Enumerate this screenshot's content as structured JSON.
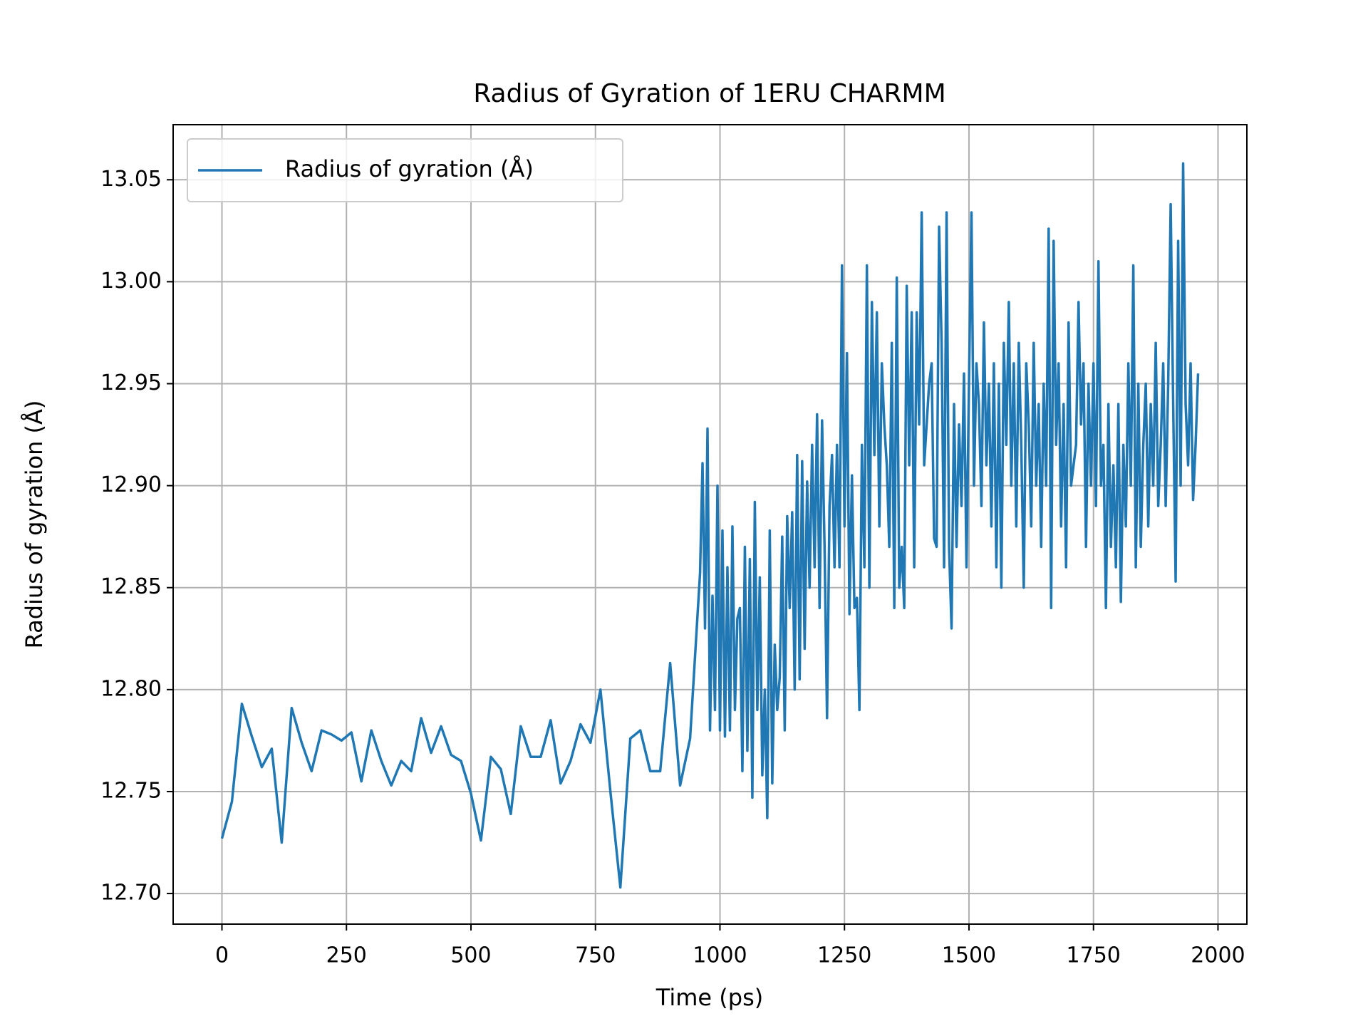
{
  "chart_data": {
    "type": "line",
    "title": "Radius of Gyration of 1ERU CHARMM",
    "xlabel": "Time (ps)",
    "ylabel": "Radius of gyration (Å)",
    "xlim": [
      -98,
      2058
    ],
    "ylim": [
      12.685,
      13.077
    ],
    "xticks": [
      0,
      250,
      500,
      750,
      1000,
      1250,
      1500,
      1750,
      2000
    ],
    "yticks": [
      {
        "value": 12.7,
        "label": "12.70"
      },
      12.75,
      {
        "value": 12.8,
        "label": "12.80"
      },
      12.85,
      {
        "value": 12.9,
        "label": "12.90"
      },
      12.95,
      {
        "value": 13.0,
        "label": "13.00"
      },
      13.05
    ],
    "grid": true,
    "legend_position": "upper left",
    "x": [
      0,
      20,
      40,
      60,
      80,
      100,
      120,
      140,
      160,
      180,
      200,
      220,
      240,
      260,
      280,
      300,
      320,
      340,
      360,
      380,
      400,
      420,
      440,
      460,
      480,
      500,
      520,
      540,
      560,
      580,
      600,
      620,
      640,
      660,
      680,
      700,
      720,
      740,
      760,
      780,
      800,
      820,
      840,
      860,
      880,
      900,
      920,
      940,
      960,
      965,
      970,
      975,
      980,
      985,
      990,
      995,
      1000,
      1005,
      1010,
      1015,
      1020,
      1025,
      1030,
      1035,
      1040,
      1045,
      1050,
      1055,
      1060,
      1065,
      1070,
      1075,
      1080,
      1085,
      1090,
      1095,
      1100,
      1105,
      1110,
      1115,
      1120,
      1125,
      1130,
      1135,
      1140,
      1145,
      1150,
      1155,
      1160,
      1165,
      1170,
      1175,
      1180,
      1185,
      1190,
      1195,
      1200,
      1205,
      1210,
      1215,
      1220,
      1225,
      1230,
      1235,
      1240,
      1245,
      1250,
      1255,
      1260,
      1265,
      1270,
      1275,
      1280,
      1285,
      1290,
      1295,
      1300,
      1305,
      1310,
      1315,
      1320,
      1325,
      1330,
      1335,
      1340,
      1345,
      1350,
      1355,
      1360,
      1365,
      1370,
      1375,
      1380,
      1385,
      1390,
      1395,
      1400,
      1405,
      1410,
      1415,
      1420,
      1425,
      1430,
      1435,
      1440,
      1445,
      1450,
      1455,
      1460,
      1465,
      1470,
      1475,
      1480,
      1485,
      1490,
      1495,
      1500,
      1505,
      1510,
      1515,
      1520,
      1525,
      1530,
      1535,
      1540,
      1545,
      1550,
      1555,
      1560,
      1565,
      1570,
      1575,
      1580,
      1585,
      1590,
      1595,
      1600,
      1605,
      1610,
      1615,
      1620,
      1625,
      1630,
      1635,
      1640,
      1645,
      1650,
      1655,
      1660,
      1665,
      1670,
      1675,
      1680,
      1685,
      1690,
      1695,
      1700,
      1705,
      1710,
      1715,
      1720,
      1725,
      1730,
      1735,
      1740,
      1745,
      1750,
      1755,
      1760,
      1765,
      1770,
      1775,
      1780,
      1785,
      1790,
      1795,
      1800,
      1805,
      1810,
      1815,
      1820,
      1825,
      1830,
      1835,
      1840,
      1845,
      1850,
      1855,
      1860,
      1865,
      1870,
      1875,
      1880,
      1885,
      1890,
      1895,
      1900,
      1905,
      1910,
      1915,
      1920,
      1925,
      1930,
      1935,
      1940,
      1945,
      1950,
      1955,
      1960
    ],
    "series": [
      {
        "name": "Radius of gyration (Å)",
        "color": "#1f77b4",
        "values": [
          12.727,
          12.745,
          12.793,
          12.777,
          12.762,
          12.771,
          12.725,
          12.791,
          12.774,
          12.76,
          12.78,
          12.778,
          12.775,
          12.779,
          12.755,
          12.78,
          12.765,
          12.753,
          12.765,
          12.76,
          12.786,
          12.769,
          12.782,
          12.768,
          12.765,
          12.749,
          12.726,
          12.767,
          12.761,
          12.739,
          12.782,
          12.767,
          12.767,
          12.785,
          12.754,
          12.765,
          12.783,
          12.774,
          12.8,
          12.75,
          12.703,
          12.776,
          12.78,
          12.76,
          12.76,
          12.813,
          12.753,
          12.776,
          12.857,
          12.911,
          12.83,
          12.928,
          12.78,
          12.846,
          12.79,
          12.9,
          12.78,
          12.878,
          12.777,
          12.86,
          12.78,
          12.88,
          12.79,
          12.835,
          12.84,
          12.76,
          12.87,
          12.77,
          12.864,
          12.747,
          12.892,
          12.79,
          12.855,
          12.758,
          12.8,
          12.737,
          12.878,
          12.754,
          12.822,
          12.79,
          12.806,
          12.875,
          12.78,
          12.885,
          12.84,
          12.887,
          12.8,
          12.915,
          12.805,
          12.912,
          12.82,
          12.902,
          12.85,
          12.92,
          12.86,
          12.935,
          12.84,
          12.932,
          12.87,
          12.786,
          12.89,
          12.915,
          12.86,
          12.92,
          12.86,
          13.008,
          12.88,
          12.965,
          12.837,
          12.905,
          12.84,
          12.845,
          12.79,
          12.92,
          12.86,
          13.008,
          12.85,
          12.99,
          12.915,
          12.985,
          12.88,
          12.96,
          12.93,
          12.91,
          12.87,
          12.97,
          12.84,
          13.002,
          12.85,
          12.87,
          12.84,
          12.998,
          12.91,
          12.985,
          12.86,
          12.985,
          12.93,
          13.034,
          12.91,
          12.93,
          12.95,
          12.96,
          12.874,
          12.87,
          13.027,
          12.97,
          12.86,
          13.034,
          12.87,
          12.83,
          12.94,
          12.87,
          12.93,
          12.89,
          12.955,
          12.86,
          12.95,
          13.034,
          12.9,
          12.96,
          12.94,
          12.89,
          12.98,
          12.91,
          12.95,
          12.88,
          12.96,
          12.86,
          12.95,
          12.85,
          12.97,
          12.92,
          12.99,
          12.9,
          12.96,
          12.88,
          12.97,
          12.92,
          12.85,
          12.96,
          12.93,
          12.88,
          12.97,
          12.9,
          12.94,
          12.87,
          12.95,
          12.9,
          13.026,
          12.84,
          13.02,
          12.92,
          12.96,
          12.88,
          12.94,
          12.86,
          12.98,
          12.9,
          12.91,
          12.92,
          12.99,
          12.93,
          12.96,
          12.87,
          12.95,
          12.9,
          12.96,
          12.89,
          13.01,
          12.9,
          12.92,
          12.84,
          12.94,
          12.87,
          12.91,
          12.86,
          12.94,
          12.843,
          12.92,
          12.88,
          12.96,
          12.9,
          13.008,
          12.86,
          12.95,
          12.87,
          12.92,
          12.95,
          12.88,
          12.94,
          12.9,
          12.97,
          12.89,
          12.92,
          12.96,
          12.89,
          12.95,
          13.038,
          12.94,
          12.853,
          13.02,
          12.9,
          13.058,
          12.94,
          12.91,
          12.96,
          12.893,
          12.92,
          12.955
        ]
      }
    ]
  }
}
